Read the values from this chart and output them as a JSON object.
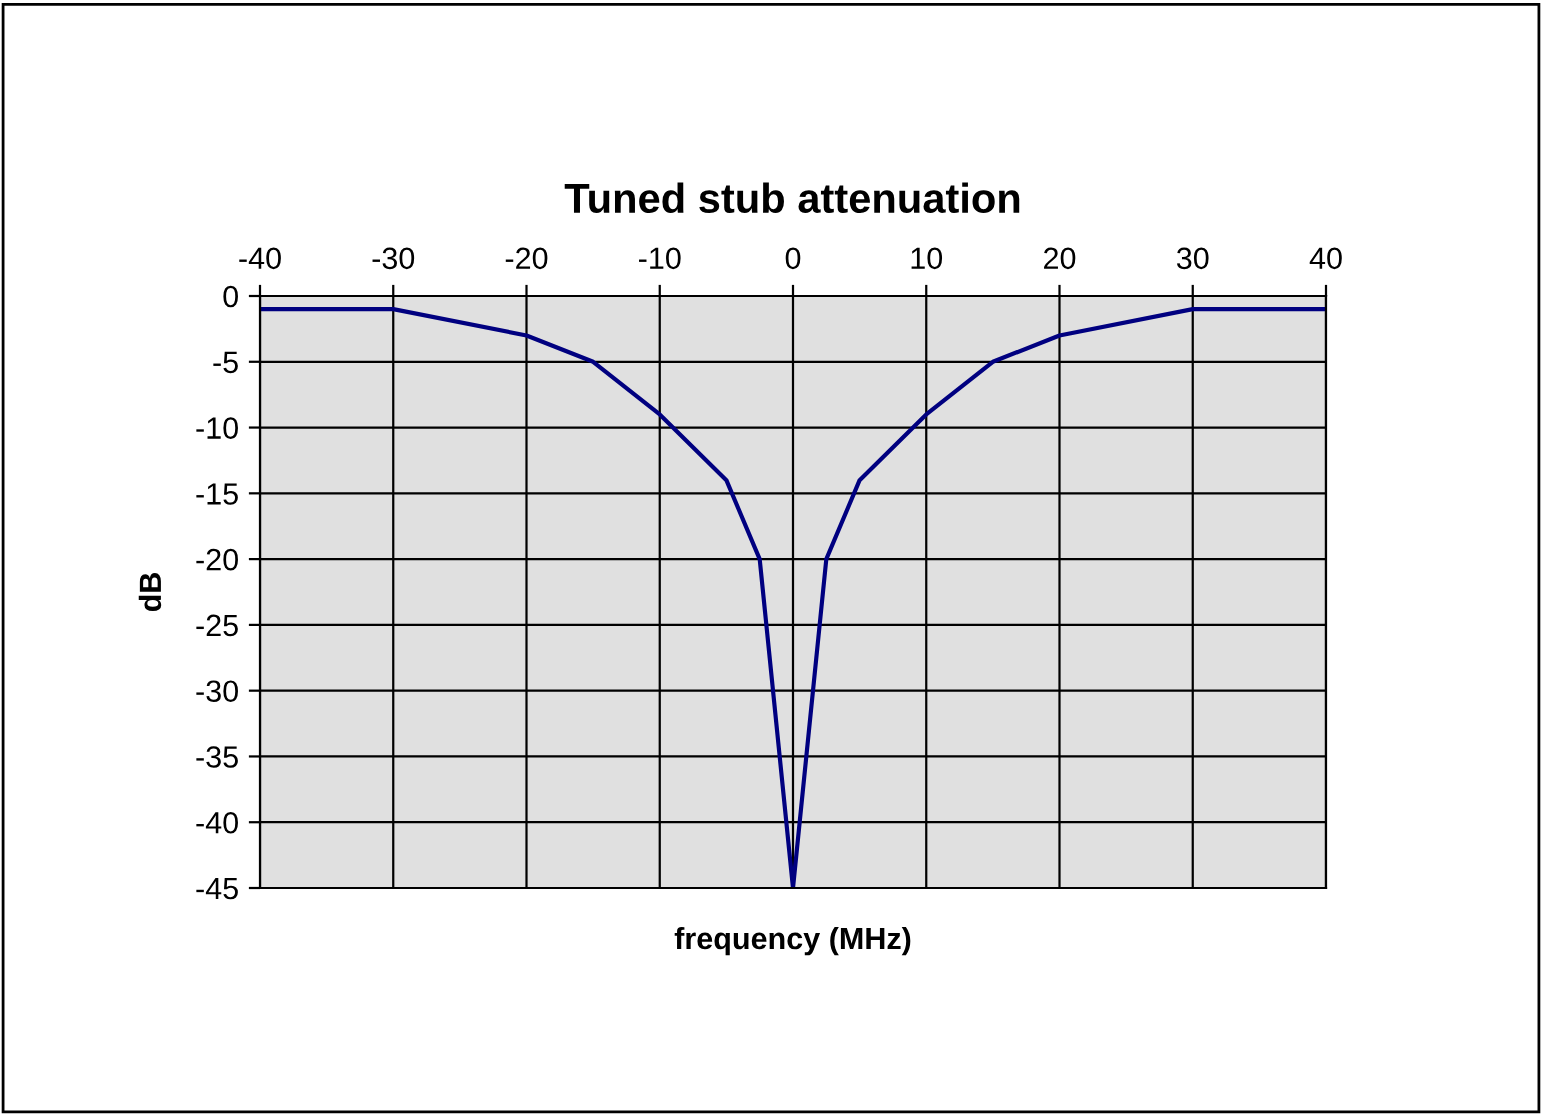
{
  "chart_data": {
    "type": "line",
    "title": "Tuned stub attenuation",
    "xlabel": "frequency (MHz)",
    "ylabel": "dB",
    "x": [
      -40,
      -30,
      -20,
      -15,
      -10,
      -5,
      -2.5,
      0,
      2.5,
      5,
      10,
      15,
      20,
      30,
      40
    ],
    "series": [
      {
        "color": "#000080",
        "values": [
          -1,
          -1,
          -3,
          -5,
          -9,
          -14,
          -20,
          -45,
          -20,
          -14,
          -9,
          -5,
          -3,
          -1,
          -1
        ]
      }
    ],
    "xlim": [
      -40,
      40
    ],
    "xticks": [
      -40,
      -30,
      -20,
      -10,
      0,
      10,
      20,
      30,
      40
    ],
    "ylim": [
      -45,
      0
    ],
    "yticks": [
      -45,
      -40,
      -35,
      -30,
      -25,
      -20,
      -15,
      -10,
      -5,
      0
    ],
    "grid": true,
    "marker": "none",
    "line_style": "solid"
  }
}
